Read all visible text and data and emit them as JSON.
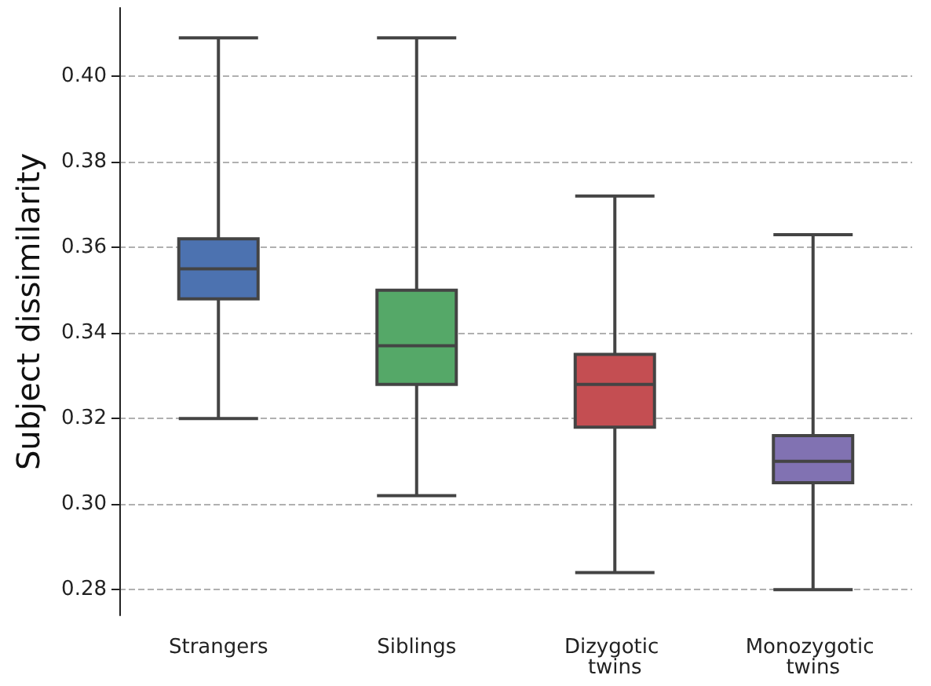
{
  "chart_data": {
    "type": "box",
    "ylabel": "Subject dissimilarity",
    "categories": [
      "Strangers",
      "Siblings",
      "Dizygotic twins",
      "Monozygotic twins"
    ],
    "series": [
      {
        "colors": [
          "#4c72b0",
          "#55a868",
          "#c44e52",
          "#8172b2"
        ],
        "boxes": [
          {
            "low": 0.32,
            "q1": 0.348,
            "median": 0.355,
            "q3": 0.362,
            "high": 0.409
          },
          {
            "low": 0.302,
            "q1": 0.328,
            "median": 0.337,
            "q3": 0.35,
            "high": 0.409
          },
          {
            "low": 0.284,
            "q1": 0.318,
            "median": 0.328,
            "q3": 0.335,
            "high": 0.372
          },
          {
            "low": 0.28,
            "q1": 0.305,
            "median": 0.31,
            "q3": 0.316,
            "high": 0.363
          }
        ]
      }
    ],
    "ylim": [
      0.274,
      0.416
    ],
    "yticks": [
      0.28,
      {
        "value": 0.3,
        "label": "0.30"
      },
      0.32,
      0.34,
      0.36,
      0.38,
      {
        "value": 0.4,
        "label": "0.40"
      }
    ],
    "grid": "y"
  }
}
